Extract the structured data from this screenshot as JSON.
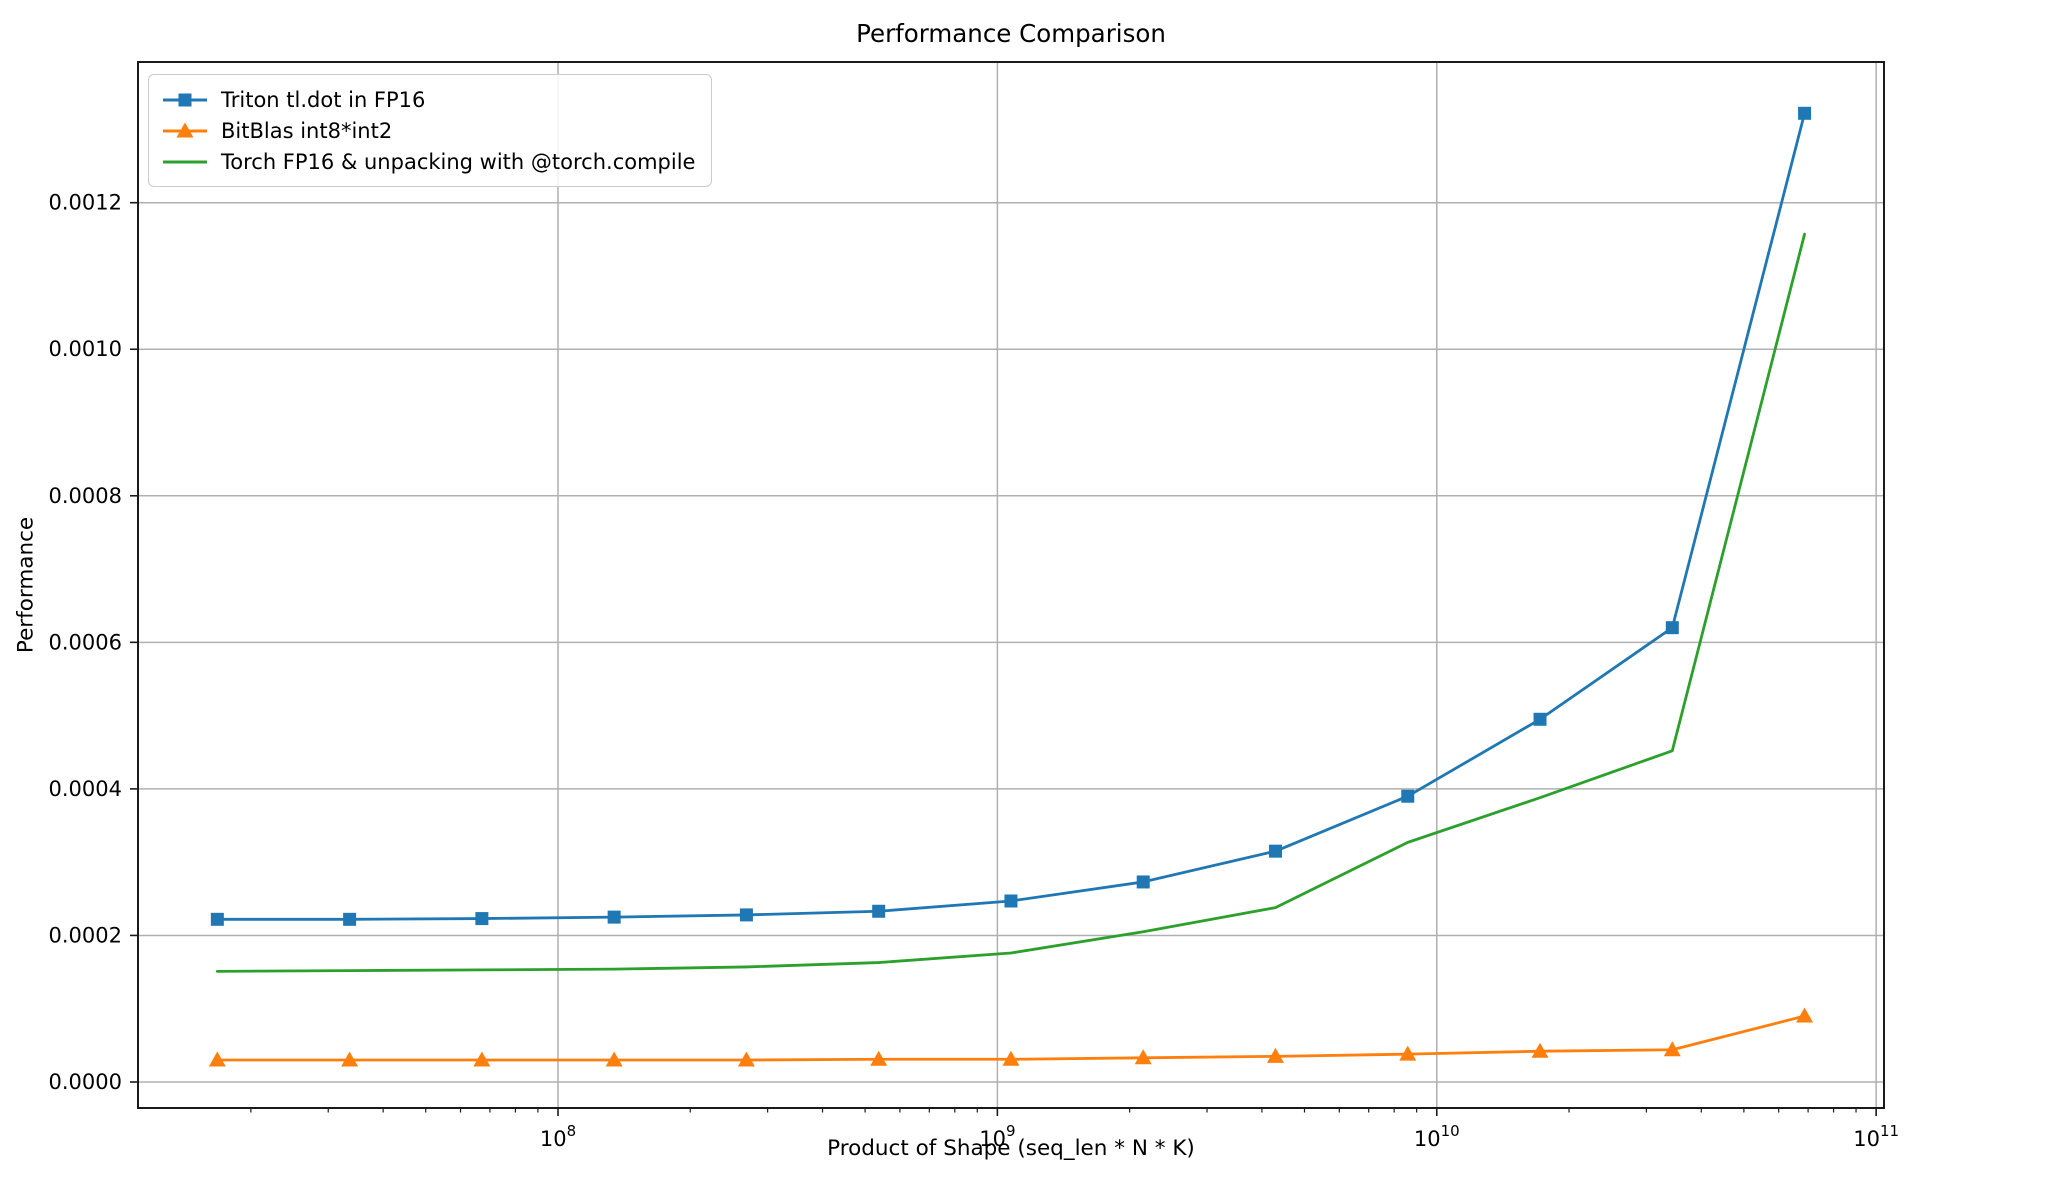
{
  "figure": {
    "background": "#ffffff"
  },
  "chart_data": {
    "type": "line",
    "title": "Performance Comparison",
    "xlabel": "Product of Shape (seq_len * N * K)",
    "ylabel": "Performance",
    "x_scale": "log",
    "grid": true,
    "legend_position": "upper-left",
    "xlim": [
      11070000,
      104200000000
    ],
    "ylim": [
      -3.55e-05,
      0.001392
    ],
    "x_tick_exponents": [
      8,
      9,
      10,
      11
    ],
    "y_ticks": [
      0.0,
      0.0002,
      0.0004,
      0.0006,
      0.0008,
      0.001,
      0.0012
    ],
    "grid_color": "#b0b0b0",
    "axis_color": "#1a1a1a",
    "x": [
      16777216,
      33554432,
      67108864,
      134217728,
      268435456,
      536870912,
      1073741824,
      2147483648,
      4294967296,
      8589934592,
      17179869184,
      34359738368,
      68719476736
    ],
    "series": [
      {
        "name": "Triton tl.dot in FP16",
        "color": "#1f77b4",
        "marker": "square",
        "values": [
          0.000222,
          0.000222,
          0.000223,
          0.000225,
          0.000228,
          0.000233,
          0.000247,
          0.000273,
          0.000315,
          0.00039,
          0.000495,
          0.00062,
          0.001322
        ]
      },
      {
        "name": "BitBlas int8*int2",
        "color": "#ff7f0e",
        "marker": "triangle",
        "values": [
          3e-05,
          3e-05,
          3e-05,
          3e-05,
          3e-05,
          3.1e-05,
          3.1e-05,
          3.3e-05,
          3.5e-05,
          3.8e-05,
          4.2e-05,
          4.4e-05,
          9e-05
        ]
      },
      {
        "name": "Torch FP16 & unpacking with @torch.compile",
        "color": "#2ca02c",
        "marker": "none",
        "values": [
          0.000151,
          0.000152,
          0.000153,
          0.000154,
          0.000157,
          0.000163,
          0.000176,
          0.000205,
          0.000238,
          0.000327,
          0.000388,
          0.000452,
          0.001157
        ]
      }
    ]
  }
}
